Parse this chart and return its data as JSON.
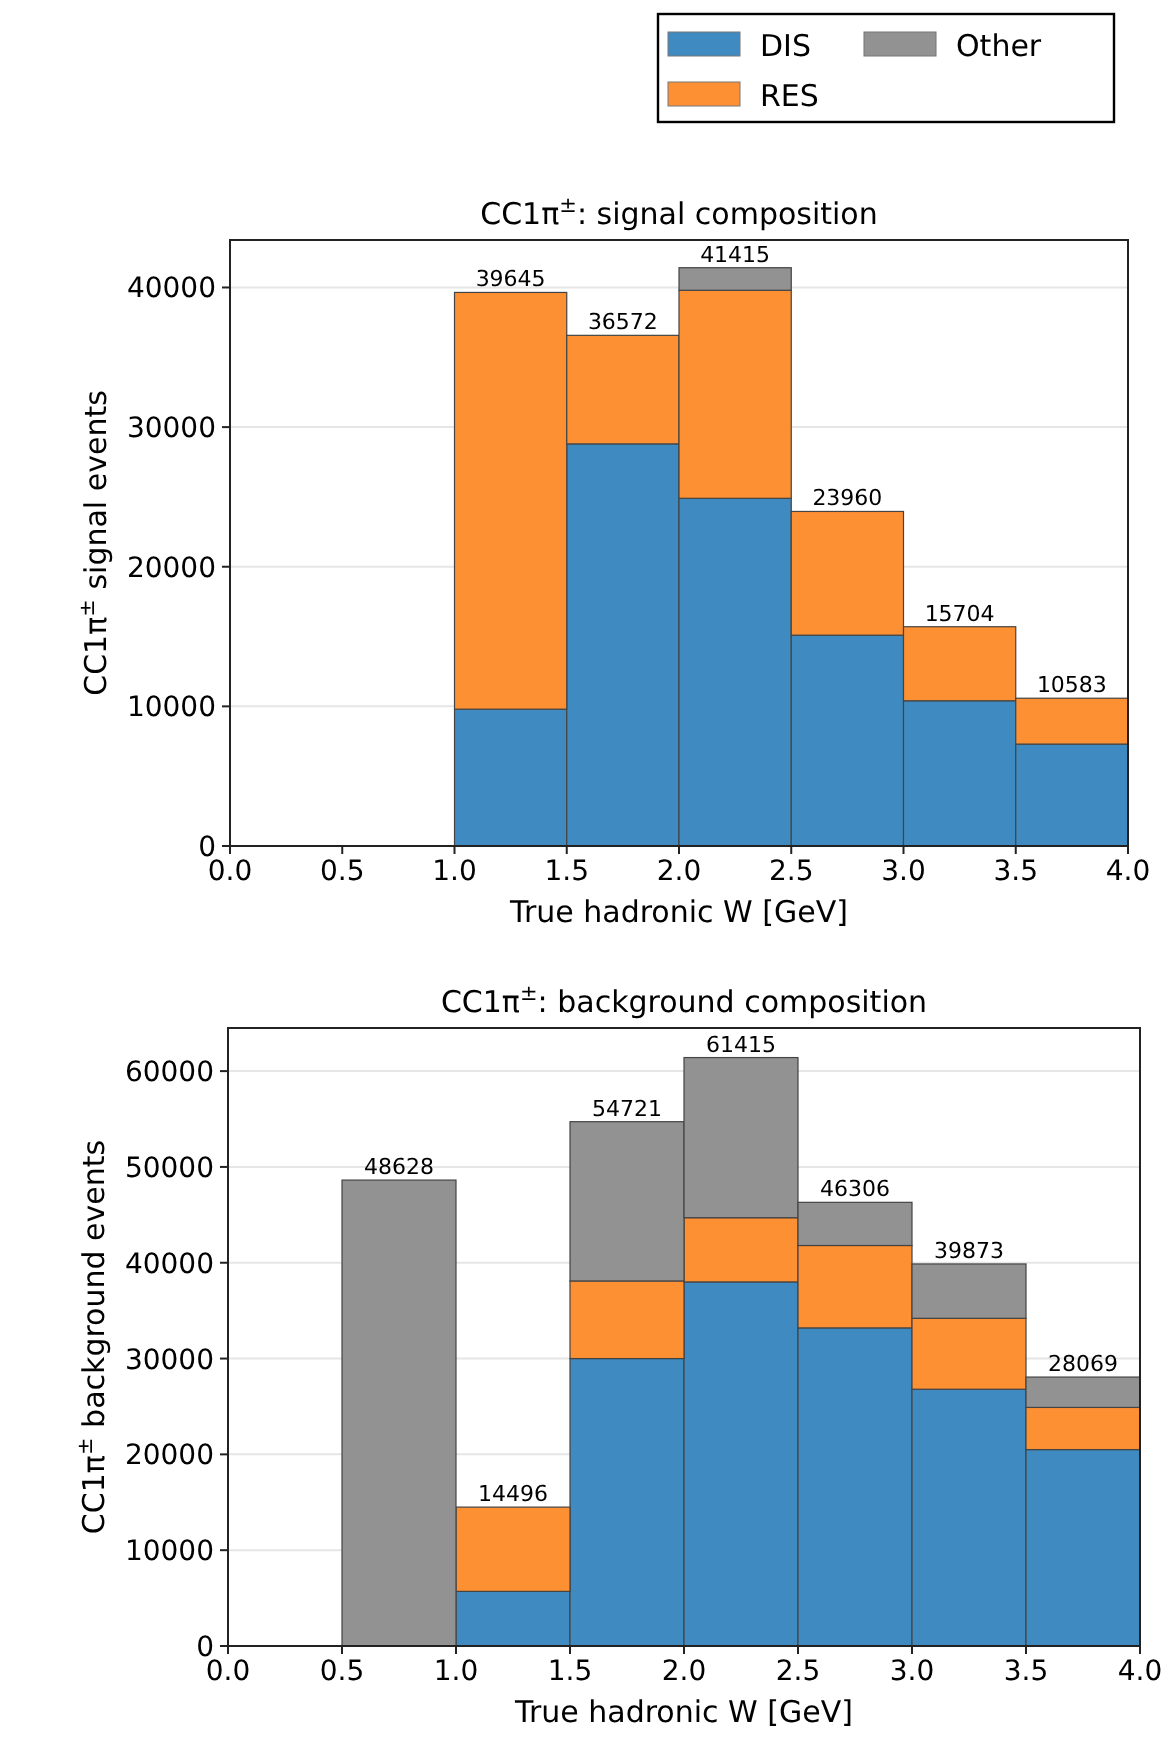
{
  "chart_data": [
    {
      "type": "bar",
      "title": "CC1π$^{±}$: signal composition",
      "xlabel": "True hadronic W [GeV]",
      "ylabel": "CC1π$^{±}$ signal events",
      "x": [
        1.25,
        1.75,
        2.25,
        2.75,
        3.25,
        3.75
      ],
      "stacked": true,
      "series": [
        {
          "name": "DIS",
          "color": "#3f8bc1",
          "values": [
            9800,
            28800,
            24900,
            15100,
            10400,
            7300
          ]
        },
        {
          "name": "RES",
          "color": "#fd9033",
          "values": [
            29845,
            7772,
            14900,
            8860,
            5304,
            3283
          ]
        },
        {
          "name": "Other",
          "color": "#929292",
          "values": [
            0,
            0,
            1615,
            0,
            0,
            0
          ]
        }
      ],
      "totals": [
        "39645",
        "36572",
        "41415",
        "23960",
        "15704",
        "10583"
      ],
      "xlim": [
        0,
        4
      ],
      "xticks": [
        {
          "value": 0,
          "label": "0.0"
        },
        {
          "value": 0.5,
          "label": "0.5"
        },
        {
          "value": 1,
          "label": "1.0"
        },
        {
          "value": 1.5,
          "label": "1.5"
        },
        {
          "value": 2,
          "label": "2.0"
        },
        {
          "value": 2.5,
          "label": "2.5"
        },
        {
          "value": 3,
          "label": "3.0"
        },
        {
          "value": 3.5,
          "label": "3.5"
        },
        {
          "value": 4,
          "label": "4.0"
        }
      ],
      "ylim": [
        0,
        43400
      ],
      "yticks": [
        0,
        10000,
        20000,
        30000,
        40000
      ],
      "grid": "y",
      "legend": "top right"
    },
    {
      "type": "bar",
      "title": "CC1π$^{±}$: background composition",
      "xlabel": "True hadronic W [GeV]",
      "ylabel": "CC1π$^{±}$ background events",
      "x": [
        0.75,
        1.25,
        1.75,
        2.25,
        2.75,
        3.25,
        3.75
      ],
      "stacked": true,
      "series": [
        {
          "color": "#3f8bc1",
          "values": [
            0,
            5700,
            30000,
            38000,
            33200,
            26800,
            20500
          ]
        },
        {
          "color": "#fd9033",
          "values": [
            0,
            8796,
            8100,
            6700,
            8600,
            7400,
            4400
          ]
        },
        {
          "color": "#929292",
          "values": [
            48628,
            0,
            16621,
            16715,
            4506,
            5673,
            3169
          ]
        }
      ],
      "totals": [
        "48628",
        "14496",
        "54721",
        "61415",
        "46306",
        "39873",
        "28069"
      ],
      "xlim": [
        0,
        4
      ],
      "xticks": [
        {
          "value": 0,
          "label": "0.0"
        },
        {
          "value": 0.5,
          "label": "0.5"
        },
        {
          "value": 1,
          "label": "1.0"
        },
        {
          "value": 1.5,
          "label": "1.5"
        },
        {
          "value": 2,
          "label": "2.0"
        },
        {
          "value": 2.5,
          "label": "2.5"
        },
        {
          "value": 3,
          "label": "3.0"
        },
        {
          "value": 3.5,
          "label": "3.5"
        },
        {
          "value": 4,
          "label": "4.0"
        }
      ],
      "ylim": [
        0,
        64500
      ],
      "yticks": [
        0,
        10000,
        20000,
        30000,
        40000,
        50000,
        60000
      ],
      "grid": "y"
    }
  ]
}
